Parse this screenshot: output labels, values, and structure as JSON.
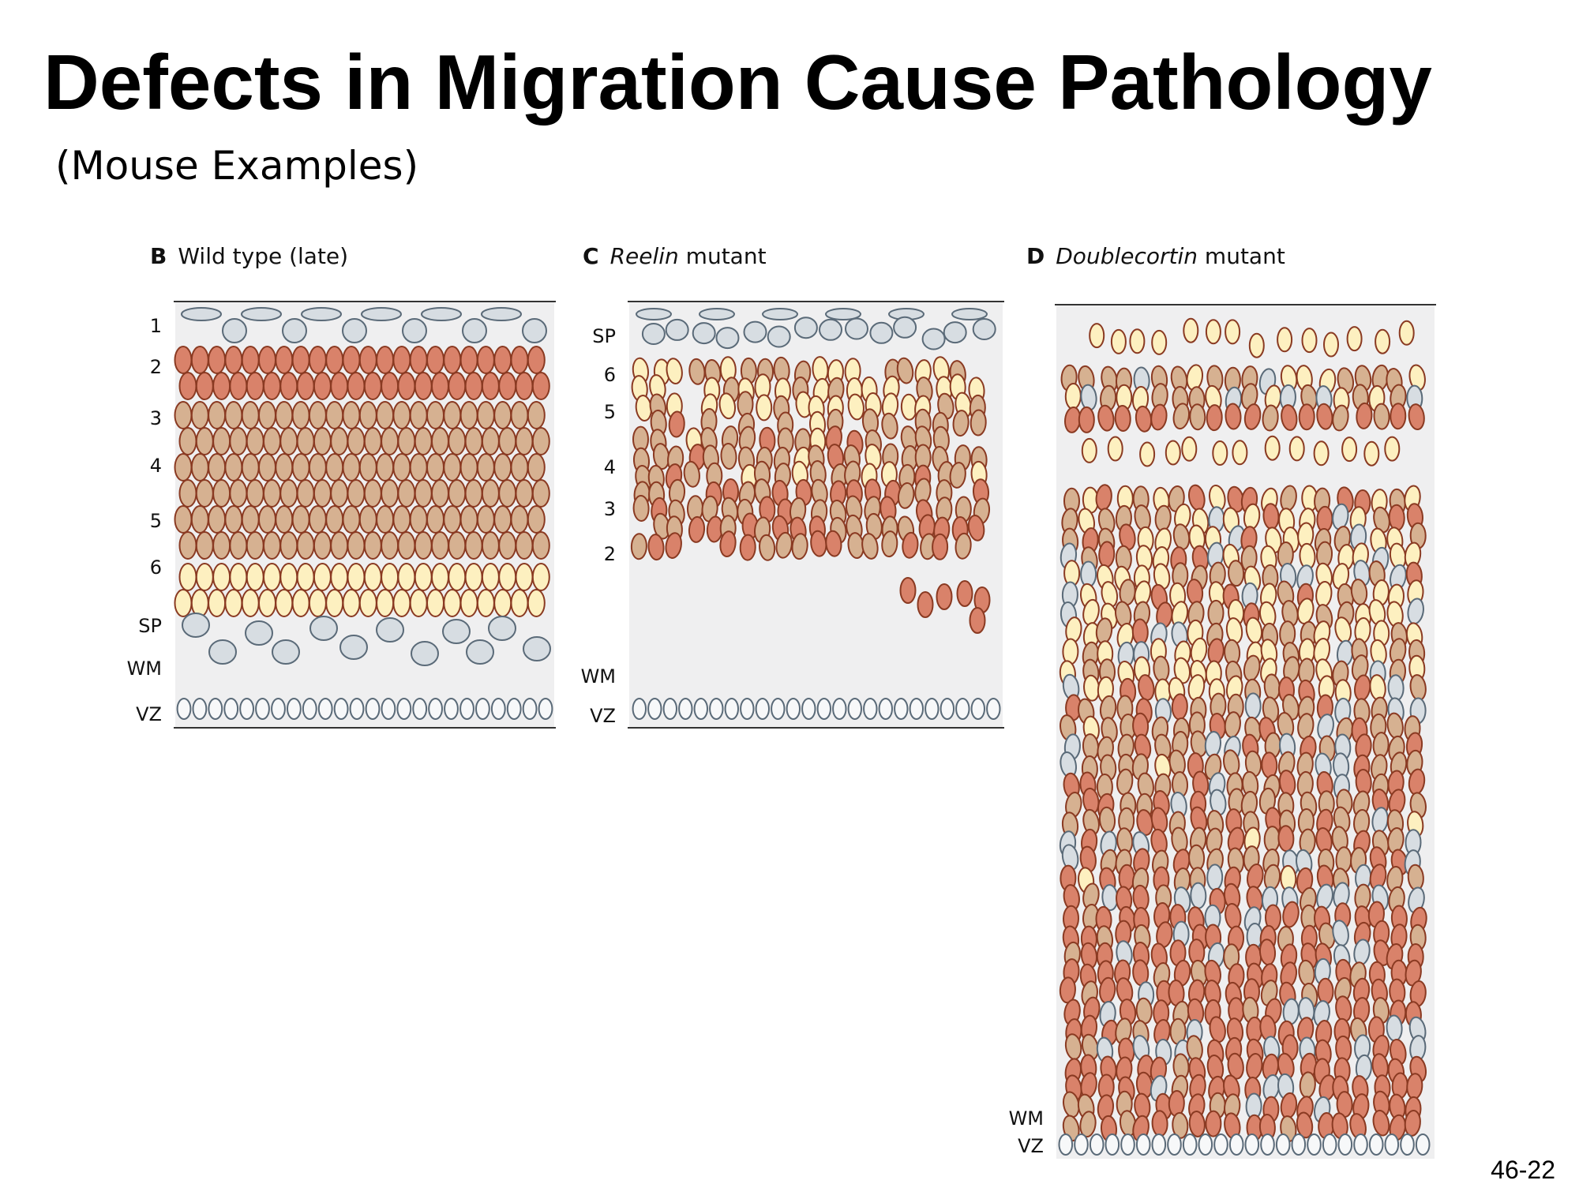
{
  "slide": {
    "title": "Defects in Migration Cause Pathology",
    "subtitle": "(Mouse Examples)",
    "slide_number": "46-22"
  },
  "colors": {
    "background_panel": "#efeff0",
    "layer_2_cells": "#d9826a",
    "layer_3_5_cells": "#d6b191",
    "layer_6_cells": "#fdf0c0",
    "glial_cells": "#d7dde2",
    "cell_outline": "#8a3a22",
    "grey_outline": "#5a6a78"
  },
  "panels": [
    {
      "id": "wild-type",
      "letter": "B",
      "title_plain": "Wild type (late)",
      "title_italic": "",
      "layer_labels": [
        "1",
        "2",
        "3",
        "4",
        "5",
        "6",
        "SP",
        "WM",
        "VZ"
      ]
    },
    {
      "id": "reelin",
      "letter": "C",
      "title_italic": "Reelin",
      "title_plain": " mutant",
      "layer_labels": [
        "SP",
        "6",
        "5",
        "4",
        "3",
        "2",
        "WM",
        "VZ"
      ]
    },
    {
      "id": "doublecortin",
      "letter": "D",
      "title_italic": "Doublecortin",
      "title_plain": " mutant",
      "layer_labels": [
        "WM",
        "VZ"
      ]
    }
  ]
}
